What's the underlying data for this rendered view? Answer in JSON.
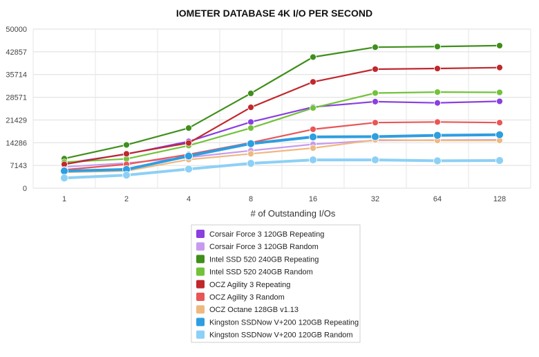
{
  "chart_data": {
    "type": "line",
    "title": "IOMETER DATABASE 4K I/O PER SECOND",
    "xlabel": "# of Outstanding I/Os",
    "ylabel": "",
    "categories": [
      "1",
      "2",
      "4",
      "8",
      "16",
      "32",
      "64",
      "128"
    ],
    "yticks": [
      "0",
      "7143",
      "14286",
      "21429",
      "28571",
      "35714",
      "42857",
      "50000"
    ],
    "ylim": [
      0,
      50000
    ],
    "grid": true,
    "legend_position": "bottom-center",
    "series": [
      {
        "name": "Corsair Force 3 120GB Repeating",
        "color": "#8a3fe0",
        "values": [
          7800,
          10700,
          14700,
          20800,
          25500,
          27200,
          26800,
          27300
        ]
      },
      {
        "name": "Corsair Force 3 120GB Random",
        "color": "#c79af0",
        "values": [
          6700,
          7900,
          9700,
          11800,
          13800,
          15000,
          15100,
          15200
        ]
      },
      {
        "name": "Intel SSD 520 240GB Repeating",
        "color": "#3f8f1a",
        "values": [
          9300,
          13600,
          18900,
          29800,
          41200,
          44300,
          44500,
          44800
        ]
      },
      {
        "name": "Intel SSD 520 240GB Random",
        "color": "#72c23a",
        "values": [
          8200,
          9200,
          13400,
          18900,
          25200,
          29900,
          30200,
          30100
        ]
      },
      {
        "name": "OCZ Agility 3 Repeating",
        "color": "#c0282c",
        "values": [
          7500,
          10800,
          14200,
          25400,
          33400,
          37400,
          37600,
          37900
        ]
      },
      {
        "name": "OCZ Agility 3 Random",
        "color": "#e95656",
        "values": [
          5800,
          7500,
          10600,
          14300,
          18500,
          20600,
          20800,
          20600
        ]
      },
      {
        "name": "OCZ Octane 128GB v1.13",
        "color": "#efb881",
        "values": [
          5000,
          5400,
          9000,
          10800,
          12600,
          15200,
          15000,
          15000
        ]
      },
      {
        "name": "Kingston SSDNow V+200 120GB Repeating",
        "color": "#2e9ee0",
        "values": [
          5400,
          5900,
          10100,
          14000,
          16100,
          16200,
          16600,
          16800
        ]
      },
      {
        "name": "Kingston SSDNow V+200 120GB Random",
        "color": "#8dd0f5",
        "values": [
          3200,
          4100,
          6000,
          7800,
          8900,
          8900,
          8600,
          8700
        ]
      }
    ]
  }
}
